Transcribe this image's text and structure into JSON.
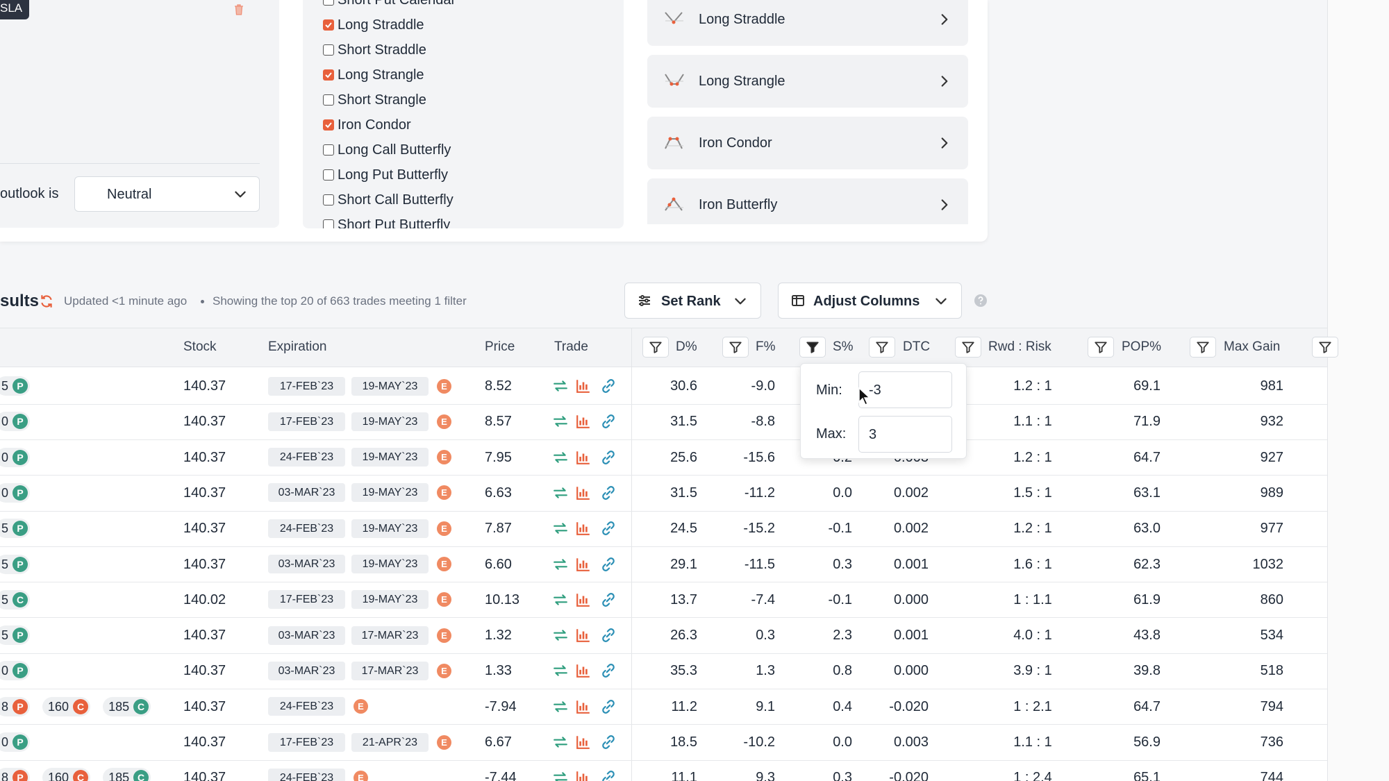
{
  "left_panel": {
    "tag": "SLA",
    "outlook_label": "outlook is",
    "outlook_value": "Neutral"
  },
  "strategies": [
    {
      "label": "Short Put Calendar",
      "checked": false
    },
    {
      "label": "Long Straddle",
      "checked": true
    },
    {
      "label": "Short Straddle",
      "checked": false
    },
    {
      "label": "Long Strangle",
      "checked": true
    },
    {
      "label": "Short Strangle",
      "checked": false
    },
    {
      "label": "Iron Condor",
      "checked": true
    },
    {
      "label": "Long Call Butterfly",
      "checked": false
    },
    {
      "label": "Long Put Butterfly",
      "checked": false
    },
    {
      "label": "Short Call Butterfly",
      "checked": false
    },
    {
      "label": "Short Put Butterfly",
      "checked": false
    }
  ],
  "strategy_cards": [
    "Long Straddle",
    "Long Strangle",
    "Iron Condor",
    "Iron Butterfly"
  ],
  "results": {
    "title": "sults",
    "updated": "Updated <1 minute ago",
    "showing": "Showing the top 20 of 663 trades meeting 1 filter",
    "set_rank": "Set Rank",
    "adjust_columns": "Adjust Columns"
  },
  "table": {
    "headers": [
      "Stock",
      "Expiration",
      "Price",
      "Trade",
      "D%",
      "F%",
      "S%",
      "DTC",
      "Rwd : Risk",
      "POP%",
      "Max Gain"
    ],
    "active_filter": 6,
    "rows": [
      {
        "legs": [
          {
            "strike": "5",
            "type": "P",
            "color": "#3a9e84"
          }
        ],
        "stock": "140.37",
        "expirations": [
          "17-FEB`23",
          "19-MAY`23"
        ],
        "earnings": "E",
        "price": "8.52",
        "d": "30.6",
        "f": "-9.0",
        "s": null,
        "dtc": null,
        "rwd_risk": "1.2 : 1",
        "pop": "69.1",
        "max_gain": "981"
      },
      {
        "legs": [
          {
            "strike": "0",
            "type": "P",
            "color": "#3a9e84"
          }
        ],
        "stock": "140.37",
        "expirations": [
          "17-FEB`23",
          "19-MAY`23"
        ],
        "earnings": "E",
        "price": "8.57",
        "d": "31.5",
        "f": "-8.8",
        "s": null,
        "dtc": null,
        "rwd_risk": "1.1 : 1",
        "pop": "71.9",
        "max_gain": "932"
      },
      {
        "legs": [
          {
            "strike": "0",
            "type": "P",
            "color": "#3a9e84"
          }
        ],
        "stock": "140.37",
        "expirations": [
          "24-FEB`23",
          "19-MAY`23"
        ],
        "earnings": "E",
        "price": "7.95",
        "d": "25.6",
        "f": "-15.6",
        "s": "0.2",
        "dtc": "0.003",
        "rwd_risk": "1.2 : 1",
        "pop": "64.7",
        "max_gain": "927"
      },
      {
        "legs": [
          {
            "strike": "0",
            "type": "P",
            "color": "#3a9e84"
          }
        ],
        "stock": "140.37",
        "expirations": [
          "03-MAR`23",
          "19-MAY`23"
        ],
        "earnings": "E",
        "price": "6.63",
        "d": "31.5",
        "f": "-11.2",
        "s": "0.0",
        "dtc": "0.002",
        "rwd_risk": "1.5 : 1",
        "pop": "63.1",
        "max_gain": "989"
      },
      {
        "legs": [
          {
            "strike": "5",
            "type": "P",
            "color": "#3a9e84"
          }
        ],
        "stock": "140.37",
        "expirations": [
          "24-FEB`23",
          "19-MAY`23"
        ],
        "earnings": "E",
        "price": "7.87",
        "d": "24.5",
        "f": "-15.2",
        "s": "-0.1",
        "dtc": "0.002",
        "rwd_risk": "1.2 : 1",
        "pop": "63.0",
        "max_gain": "977"
      },
      {
        "legs": [
          {
            "strike": "5",
            "type": "P",
            "color": "#3a9e84"
          }
        ],
        "stock": "140.37",
        "expirations": [
          "03-MAR`23",
          "19-MAY`23"
        ],
        "earnings": "E",
        "price": "6.60",
        "d": "29.1",
        "f": "-11.5",
        "s": "0.3",
        "dtc": "0.001",
        "rwd_risk": "1.6 : 1",
        "pop": "62.3",
        "max_gain": "1032"
      },
      {
        "legs": [
          {
            "strike": "5",
            "type": "C",
            "color": "#3a9e84"
          }
        ],
        "stock": "140.02",
        "expirations": [
          "17-FEB`23",
          "19-MAY`23"
        ],
        "earnings": "E",
        "price": "10.13",
        "d": "13.7",
        "f": "-7.4",
        "s": "-0.1",
        "dtc": "0.000",
        "rwd_risk": "1 : 1.1",
        "pop": "61.9",
        "max_gain": "860"
      },
      {
        "legs": [
          {
            "strike": "5",
            "type": "P",
            "color": "#3a9e84"
          }
        ],
        "stock": "140.37",
        "expirations": [
          "03-MAR`23",
          "17-MAR`23"
        ],
        "earnings": "E",
        "price": "1.32",
        "d": "26.3",
        "f": "0.3",
        "s": "2.3",
        "dtc": "0.001",
        "rwd_risk": "4.0 : 1",
        "pop": "43.8",
        "max_gain": "534"
      },
      {
        "legs": [
          {
            "strike": "0",
            "type": "P",
            "color": "#3a9e84"
          }
        ],
        "stock": "140.37",
        "expirations": [
          "03-MAR`23",
          "17-MAR`23"
        ],
        "earnings": "E",
        "price": "1.33",
        "d": "35.3",
        "f": "1.3",
        "s": "0.8",
        "dtc": "0.000",
        "rwd_risk": "3.9 : 1",
        "pop": "39.8",
        "max_gain": "518"
      },
      {
        "legs": [
          {
            "strike": "8",
            "type": "P",
            "color": "#e8603c"
          },
          {
            "strike": "160",
            "type": "C",
            "color": "#e8603c"
          },
          {
            "strike": "185",
            "type": "C",
            "color": "#3a9e84"
          }
        ],
        "stock": "140.37",
        "expirations": [
          "24-FEB`23"
        ],
        "earnings": "E",
        "price": "-7.94",
        "d": "11.2",
        "f": "9.1",
        "s": "0.4",
        "dtc": "-0.020",
        "rwd_risk": "1 : 2.1",
        "pop": "64.7",
        "max_gain": "794"
      },
      {
        "legs": [
          {
            "strike": "0",
            "type": "P",
            "color": "#3a9e84"
          }
        ],
        "stock": "140.37",
        "expirations": [
          "17-FEB`23",
          "21-APR`23"
        ],
        "earnings": "E",
        "price": "6.67",
        "d": "18.5",
        "f": "-10.2",
        "s": "0.0",
        "dtc": "0.003",
        "rwd_risk": "1.1 : 1",
        "pop": "56.9",
        "max_gain": "736"
      },
      {
        "legs": [
          {
            "strike": "8",
            "type": "P",
            "color": "#e8603c"
          },
          {
            "strike": "160",
            "type": "C",
            "color": "#e8603c"
          },
          {
            "strike": "185",
            "type": "C",
            "color": "#3a9e84"
          }
        ],
        "stock": "140.37",
        "expirations": [
          "24-FEB`23"
        ],
        "earnings": "E",
        "price": "-7.44",
        "d": "11.1",
        "f": "9.3",
        "s": "0.3",
        "dtc": "-0.020",
        "rwd_risk": "1 : 2.4",
        "pop": "65.1",
        "max_gain": "744"
      }
    ]
  },
  "filter_popup": {
    "min_label": "Min:",
    "min_value": "-3",
    "max_label": "Max:",
    "max_value": "3"
  }
}
